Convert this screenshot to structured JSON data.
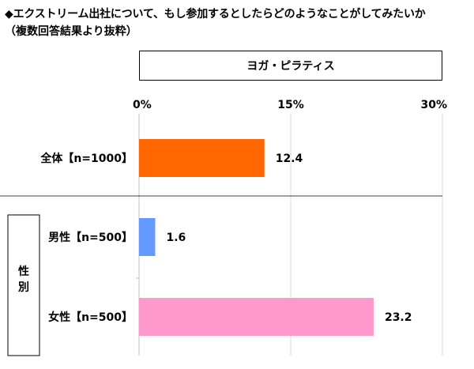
{
  "chart_data": {
    "type": "bar",
    "orientation": "horizontal",
    "title": "◆エクストリーム出社について、もし参加するとしたらどのようなことがしてみたいか",
    "subtitle": "（複数回答結果より抜粋）",
    "legend": [
      "ヨガ・ピラティス"
    ],
    "legend_placement": "top",
    "xlim": [
      0,
      30
    ],
    "ticks": [
      {
        "value": 0,
        "label": "0%"
      },
      {
        "value": 15,
        "label": "15%"
      },
      {
        "value": 30,
        "label": "30%"
      }
    ],
    "grid": true,
    "categories": [
      "全体【n=1000】",
      "男性【n=500】",
      "女性【n=500】"
    ],
    "series": [
      {
        "name": "ヨガ・ピラティス",
        "values": [
          12.4,
          1.6,
          23.2
        ],
        "value_labels": [
          "12.4",
          "1.6",
          "23.2"
        ],
        "colors": [
          "#ff6600",
          "#6699ff",
          "#ff99cc"
        ]
      }
    ],
    "group_label": "性別",
    "group_members": [
      "男性【n=500】",
      "女性【n=500】"
    ]
  }
}
